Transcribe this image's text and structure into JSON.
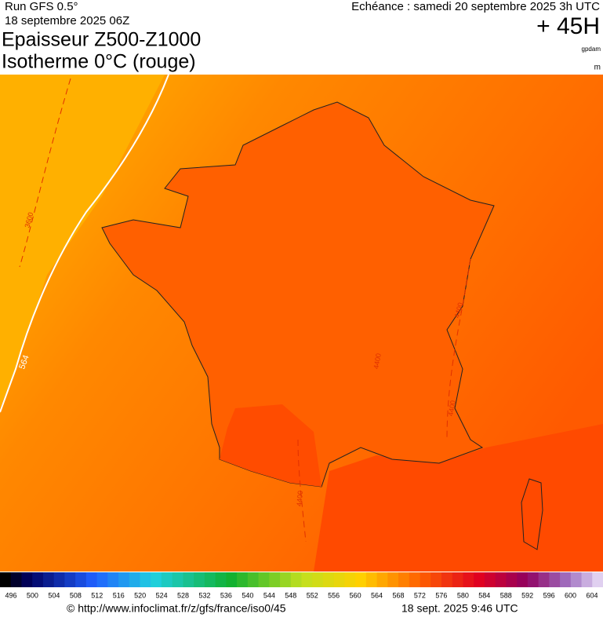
{
  "header": {
    "run": "Run GFS 0.5°",
    "run_date": "18 septembre 2025 06Z",
    "forecast": "Echéance : samedi 20 septembre 2025 3h UTC",
    "lead": "+ 45H",
    "title_line1": "Epaisseur Z500-Z1000",
    "title_line2": "Isotherme 0°C (rouge)",
    "unit1": "gpdam",
    "unit2": "m"
  },
  "map": {
    "contour_labels": [
      "3600",
      "564",
      "4400",
      "4400",
      "4400",
      "4400"
    ]
  },
  "legend": {
    "labels": [
      "496",
      "500",
      "504",
      "508",
      "512",
      "516",
      "520",
      "524",
      "528",
      "532",
      "536",
      "540",
      "544",
      "548",
      "552",
      "556",
      "560",
      "564",
      "568",
      "572",
      "576",
      "580",
      "584",
      "588",
      "592",
      "596",
      "600",
      "604"
    ]
  },
  "footer": {
    "source": "© http://www.infoclimat.fr/z/gfs/france/iso0/45",
    "timestamp": "18 sept. 2025  9:46 UTC"
  }
}
